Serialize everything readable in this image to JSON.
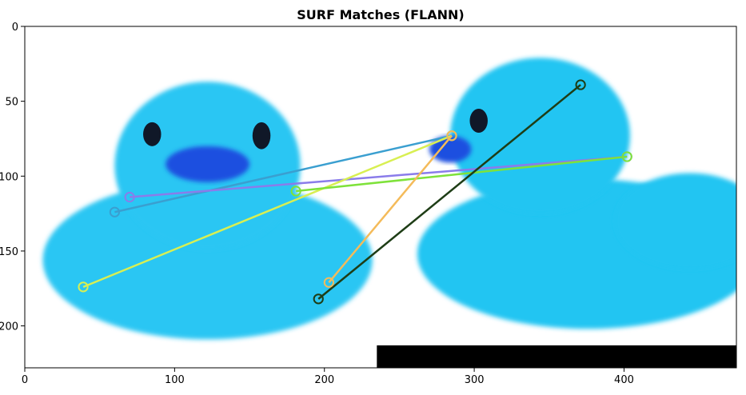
{
  "chart_data": {
    "type": "image",
    "title": "SURF Matches (FLANN)",
    "xlabel": "",
    "ylabel": "",
    "xlim": [
      0,
      475
    ],
    "ylim": [
      228,
      0
    ],
    "x_ticks": [
      0,
      100,
      200,
      300,
      400
    ],
    "y_ticks": [
      0,
      50,
      100,
      150,
      200
    ],
    "x_tick_labels": [
      "0",
      "100",
      "200",
      "300",
      "400"
    ],
    "y_tick_labels": [
      "0",
      "50",
      "100",
      "150",
      "200"
    ],
    "grid": false,
    "background_bar": {
      "x_start": 235,
      "x_end": 475,
      "y_start": 213,
      "y_end": 228,
      "color": "#000000"
    },
    "left_duck": {
      "body_color": "#2cc6f3",
      "head": {
        "cx": 122,
        "cy": 93,
        "rx": 62,
        "ry": 56
      },
      "body": {
        "cx": 122,
        "cy": 156,
        "rx": 110,
        "ry": 53
      },
      "beak_color": "#1d4fe0",
      "beak": {
        "cx": 122,
        "cy": 92,
        "rx": 28,
        "ry": 12
      },
      "eyes": [
        {
          "cx": 85,
          "cy": 72,
          "rx": 6,
          "ry": 8
        },
        {
          "cx": 158,
          "cy": 73,
          "rx": 6,
          "ry": 9
        }
      ]
    },
    "right_duck": {
      "body_color": "#24c5f2",
      "head": {
        "cx": 344,
        "cy": 73,
        "rx": 60,
        "ry": 52
      },
      "body": {
        "cx": 376,
        "cy": 152,
        "rx": 114,
        "ry": 50
      },
      "tail": {
        "cx": 444,
        "cy": 130,
        "rx": 50,
        "ry": 32
      },
      "beak_color": "#1d4fe0",
      "beak": {
        "cx": 284,
        "cy": 82,
        "rx": 14,
        "ry": 9
      },
      "eyes": [
        {
          "cx": 303,
          "cy": 63,
          "rx": 6,
          "ry": 8
        }
      ]
    },
    "matches": [
      {
        "p1": [
          60,
          124
        ],
        "p2": [
          285,
          73
        ],
        "color": "#3a9fd0"
      },
      {
        "p1": [
          70,
          114
        ],
        "p2": [
          402,
          87
        ],
        "color": "#8a7cea"
      },
      {
        "p1": [
          39,
          174
        ],
        "p2": [
          285,
          73
        ],
        "color": "#d8ef52"
      },
      {
        "p1": [
          181,
          110
        ],
        "p2": [
          402,
          87
        ],
        "color": "#7ee23a"
      },
      {
        "p1": [
          203,
          171
        ],
        "p2": [
          285,
          73
        ],
        "color": "#f4bb5a"
      },
      {
        "p1": [
          196,
          182
        ],
        "p2": [
          371,
          39
        ],
        "color": "#1e3d16"
      }
    ],
    "keypoint_radius": 3
  }
}
